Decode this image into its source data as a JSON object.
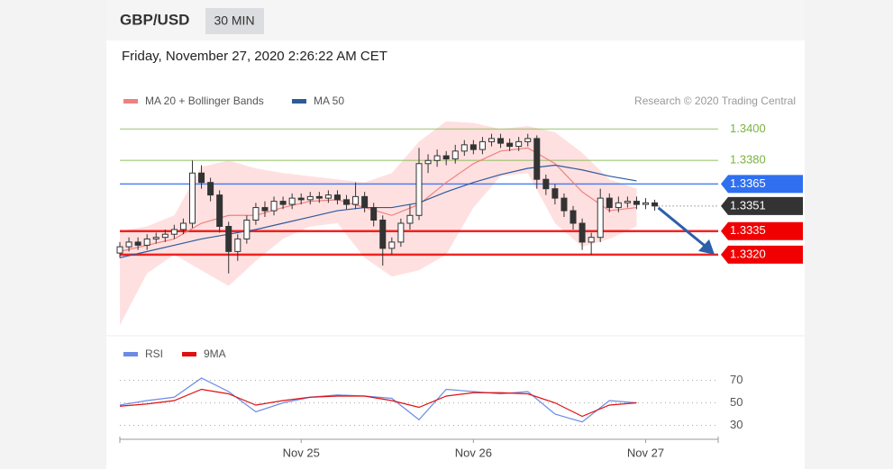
{
  "header": {
    "symbol": "GBP/USD",
    "interval": "30 MIN",
    "timestamp": "Friday, November 27, 2020 2:26:22 AM CET",
    "source": "Research © 2020 Trading Central"
  },
  "chart_data": [
    {
      "type": "candlestick",
      "xlim": [
        0,
        66
      ],
      "ylim": [
        1.327,
        1.341
      ],
      "ohlc": [
        [
          1.3321,
          1.3328,
          1.3318,
          1.3325
        ],
        [
          1.3325,
          1.3331,
          1.3322,
          1.3328
        ],
        [
          1.3328,
          1.3331,
          1.3323,
          1.3326
        ],
        [
          1.3326,
          1.3333,
          1.3323,
          1.333
        ],
        [
          1.333,
          1.3334,
          1.3327,
          1.3331
        ],
        [
          1.3331,
          1.3336,
          1.3328,
          1.3333
        ],
        [
          1.3333,
          1.3339,
          1.333,
          1.3336
        ],
        [
          1.3336,
          1.3343,
          1.3333,
          1.334
        ],
        [
          1.334,
          1.338,
          1.3337,
          1.3372
        ],
        [
          1.3372,
          1.3377,
          1.3362,
          1.3366
        ],
        [
          1.3366,
          1.3369,
          1.3354,
          1.3358
        ],
        [
          1.3358,
          1.3361,
          1.3334,
          1.3338
        ],
        [
          1.3338,
          1.3341,
          1.3308,
          1.3322
        ],
        [
          1.3322,
          1.3333,
          1.3316,
          1.333
        ],
        [
          1.333,
          1.3345,
          1.3327,
          1.3342
        ],
        [
          1.3342,
          1.3353,
          1.3339,
          1.335
        ],
        [
          1.335,
          1.3354,
          1.3344,
          1.3348
        ],
        [
          1.3348,
          1.3357,
          1.3345,
          1.3354
        ],
        [
          1.3354,
          1.3357,
          1.3349,
          1.3352
        ],
        [
          1.3352,
          1.3359,
          1.3349,
          1.3356
        ],
        [
          1.3356,
          1.3359,
          1.3352,
          1.3355
        ],
        [
          1.3355,
          1.336,
          1.3352,
          1.3357
        ],
        [
          1.3357,
          1.336,
          1.3353,
          1.3356
        ],
        [
          1.3356,
          1.3361,
          1.3353,
          1.3358
        ],
        [
          1.3358,
          1.3361,
          1.3352,
          1.3355
        ],
        [
          1.3355,
          1.3358,
          1.3349,
          1.3352
        ],
        [
          1.3352,
          1.3366,
          1.3349,
          1.3357
        ],
        [
          1.3357,
          1.336,
          1.3347,
          1.335
        ],
        [
          1.335,
          1.3353,
          1.3338,
          1.3342
        ],
        [
          1.3342,
          1.3345,
          1.3313,
          1.3324
        ],
        [
          1.3324,
          1.3331,
          1.332,
          1.3328
        ],
        [
          1.3328,
          1.3343,
          1.3325,
          1.334
        ],
        [
          1.334,
          1.3352,
          1.3336,
          1.3345
        ],
        [
          1.3345,
          1.3388,
          1.3342,
          1.3378
        ],
        [
          1.3378,
          1.3384,
          1.3372,
          1.338
        ],
        [
          1.338,
          1.3387,
          1.3376,
          1.3383
        ],
        [
          1.3383,
          1.3386,
          1.3377,
          1.3381
        ],
        [
          1.3381,
          1.339,
          1.3378,
          1.3386
        ],
        [
          1.3386,
          1.3393,
          1.3383,
          1.339
        ],
        [
          1.339,
          1.3393,
          1.3384,
          1.3387
        ],
        [
          1.3387,
          1.3395,
          1.3384,
          1.3392
        ],
        [
          1.3392,
          1.3397,
          1.3389,
          1.3394
        ],
        [
          1.3394,
          1.3397,
          1.3388,
          1.3391
        ],
        [
          1.3391,
          1.3394,
          1.3386,
          1.3389
        ],
        [
          1.3389,
          1.3395,
          1.3386,
          1.3392
        ],
        [
          1.3392,
          1.3397,
          1.3389,
          1.3394
        ],
        [
          1.3394,
          1.3396,
          1.3362,
          1.3368
        ],
        [
          1.3368,
          1.3371,
          1.3358,
          1.3362
        ],
        [
          1.3362,
          1.3365,
          1.3352,
          1.3356
        ],
        [
          1.3356,
          1.3359,
          1.3344,
          1.3348
        ],
        [
          1.3348,
          1.3351,
          1.3336,
          1.334
        ],
        [
          1.334,
          1.3343,
          1.3323,
          1.3328
        ],
        [
          1.3328,
          1.3334,
          1.332,
          1.3331
        ],
        [
          1.3331,
          1.3362,
          1.3328,
          1.3356
        ],
        [
          1.3356,
          1.3359,
          1.3347,
          1.335
        ],
        [
          1.335,
          1.3357,
          1.3347,
          1.3353
        ],
        [
          1.3353,
          1.3357,
          1.335,
          1.3354
        ],
        [
          1.3354,
          1.3357,
          1.3349,
          1.3352
        ],
        [
          1.3352,
          1.3356,
          1.3349,
          1.3353
        ],
        [
          1.3353,
          1.3355,
          1.3348,
          1.3351
        ]
      ],
      "x": [
        0,
        3,
        6,
        9,
        12,
        15,
        18,
        21,
        24,
        27,
        30,
        33,
        36,
        39,
        42,
        45,
        48,
        51,
        54,
        57
      ],
      "series": [
        {
          "name": "MA 20 + Bollinger Bands",
          "color": "#f08080",
          "values": [
            1.3322,
            1.3326,
            1.333,
            1.334,
            1.3345,
            1.3345,
            1.335,
            1.3354,
            1.3355,
            1.335,
            1.3345,
            1.3352,
            1.3366,
            1.3378,
            1.3386,
            1.3388,
            1.3378,
            1.336,
            1.3348,
            1.335
          ]
        },
        {
          "name": "MA 50",
          "color": "#2e5a9c",
          "values": [
            1.3318,
            1.3322,
            1.3326,
            1.333,
            1.3333,
            1.3336,
            1.334,
            1.3344,
            1.3348,
            1.335,
            1.335,
            1.3353,
            1.336,
            1.3366,
            1.3371,
            1.3375,
            1.3377,
            1.3374,
            1.337,
            1.3367
          ]
        }
      ],
      "band_upper": [
        1.3335,
        1.3338,
        1.3345,
        1.3376,
        1.338,
        1.3375,
        1.3372,
        1.337,
        1.3368,
        1.3366,
        1.3372,
        1.3392,
        1.3405,
        1.3404,
        1.34,
        1.3402,
        1.3398,
        1.3385,
        1.3368,
        1.3362
      ],
      "band_lower": [
        1.3275,
        1.3308,
        1.332,
        1.331,
        1.33,
        1.3316,
        1.333,
        1.3338,
        1.334,
        1.3318,
        1.3306,
        1.331,
        1.332,
        1.335,
        1.337,
        1.3372,
        1.334,
        1.3325,
        1.333,
        1.3338
      ],
      "band_color": "#ffe0e0",
      "levels": [
        {
          "value": 1.34,
          "label": "1.3400",
          "color": "#7cb342",
          "style": "text"
        },
        {
          "value": 1.338,
          "label": "1.3380",
          "color": "#7cb342",
          "style": "text"
        },
        {
          "value": 1.3365,
          "label": "1.3365",
          "color": "#2f6ff0",
          "style": "box"
        },
        {
          "value": 1.3335,
          "label": "1.3335",
          "color": "#f00000",
          "style": "box"
        },
        {
          "value": 1.332,
          "label": "1.3320",
          "color": "#f00000",
          "style": "box"
        }
      ],
      "current": {
        "value": 1.3351,
        "label": "1.3351",
        "color": "#333333"
      }
    },
    {
      "type": "line",
      "xlim": [
        0,
        66
      ],
      "ylim": [
        20,
        88
      ],
      "yticks": [
        70,
        50,
        30
      ],
      "xticks": [
        {
          "value": 20,
          "label": "Nov 25"
        },
        {
          "value": 39,
          "label": "Nov 26"
        },
        {
          "value": 58,
          "label": "Nov 27"
        }
      ],
      "x": [
        0,
        3,
        6,
        9,
        12,
        15,
        18,
        21,
        24,
        27,
        30,
        33,
        36,
        39,
        42,
        45,
        48,
        51,
        54,
        57
      ],
      "series": [
        {
          "name": "RSI",
          "color": "#6b8be6",
          "values": [
            48,
            52,
            55,
            72,
            60,
            42,
            50,
            55,
            57,
            56,
            54,
            35,
            62,
            60,
            58,
            60,
            40,
            33,
            52,
            50
          ]
        },
        {
          "name": "9MA",
          "color": "#e01010",
          "values": [
            47,
            49,
            52,
            62,
            58,
            48,
            52,
            55,
            56,
            56,
            52,
            46,
            56,
            59,
            59,
            58,
            50,
            38,
            48,
            50
          ]
        }
      ]
    }
  ]
}
